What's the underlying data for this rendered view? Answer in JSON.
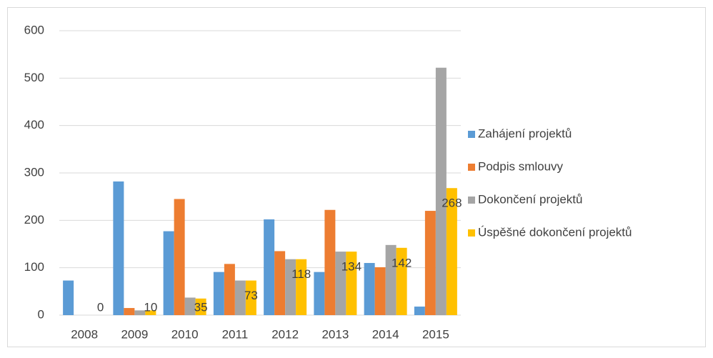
{
  "chart_data": {
    "type": "bar",
    "categories": [
      "2008",
      "2009",
      "2010",
      "2011",
      "2012",
      "2013",
      "2014",
      "2015"
    ],
    "series": [
      {
        "name": "Zahájení projektů",
        "color": "#5b9bd5",
        "values": [
          73,
          282,
          177,
          91,
          202,
          91,
          110,
          18
        ]
      },
      {
        "name": "Podpis smlouvy",
        "color": "#ed7d31",
        "values": [
          0,
          15,
          245,
          108,
          135,
          222,
          101,
          220
        ]
      },
      {
        "name": "Dokončení projektů",
        "color": "#a5a5a5",
        "values": [
          0,
          10,
          37,
          73,
          118,
          134,
          148,
          522
        ]
      },
      {
        "name": "Úspěšné dokončení projektů",
        "color": "#ffc000",
        "values": [
          0,
          10,
          35,
          73,
          118,
          134,
          142,
          268
        ],
        "show_labels": true
      }
    ],
    "ylim": [
      0,
      600
    ],
    "yticks": [
      0,
      100,
      200,
      300,
      400,
      500,
      600
    ],
    "grid": true,
    "legend": "right"
  }
}
